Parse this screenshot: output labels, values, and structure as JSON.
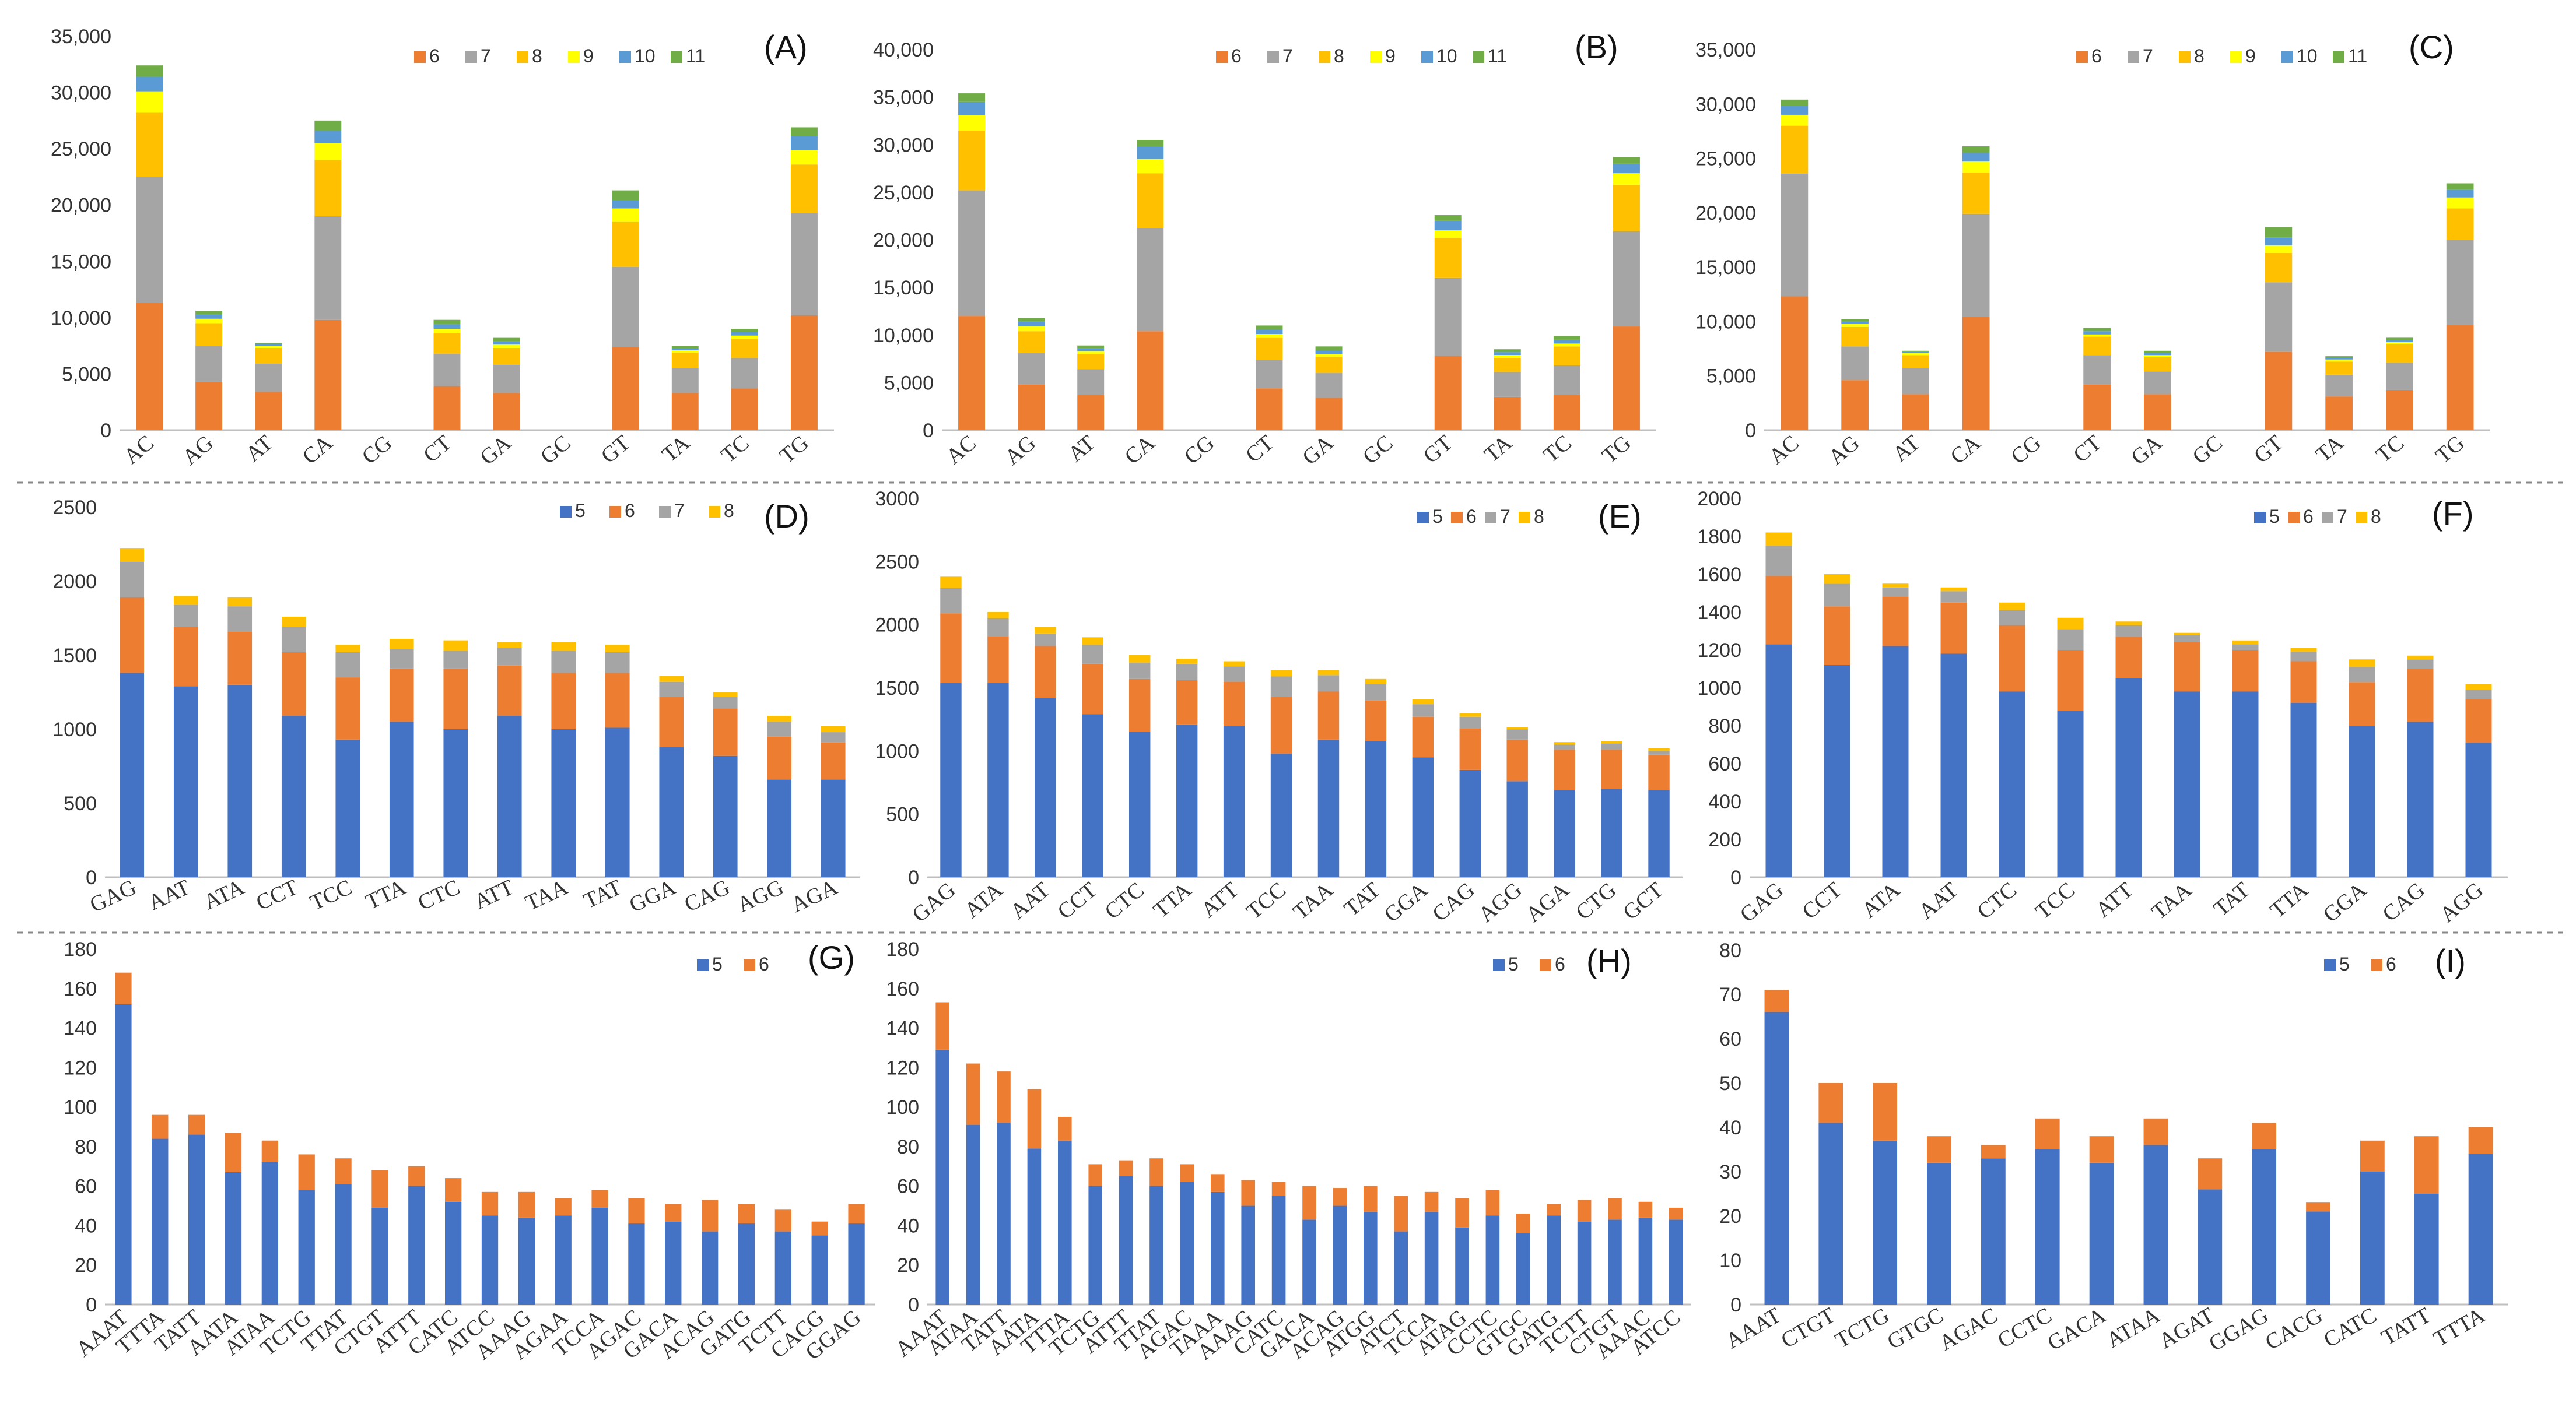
{
  "figure": {
    "colors": {
      "5": "#4472C4",
      "6": "#ED7D31",
      "7": "#A5A5A5",
      "8": "#FFC000",
      "9": "#FFFF00",
      "10": "#5B9BD5",
      "11": "#70AD47"
    }
  },
  "chart_data": [
    {
      "panel": "(A)",
      "type": "stacked-bar",
      "categories": [
        "AC",
        "AG",
        "AT",
        "CA",
        "CG",
        "CT",
        "GA",
        "GC",
        "GT",
        "TA",
        "TC",
        "TG"
      ],
      "ylim": [
        0,
        35000
      ],
      "yticks": [
        "0",
        "5,000",
        "10,000",
        "15,000",
        "20,000",
        "25,000",
        "30,000",
        "35,000"
      ],
      "legend": [
        "6",
        "7",
        "8",
        "9",
        "10",
        "11"
      ],
      "series": [
        {
          "name": "6",
          "values": [
            11300,
            4300,
            3400,
            9800,
            0,
            3900,
            3300,
            0,
            7400,
            3300,
            3700,
            10200
          ]
        },
        {
          "name": "7",
          "values": [
            11200,
            3200,
            2500,
            9200,
            0,
            2900,
            2500,
            0,
            7100,
            2200,
            2700,
            9100
          ]
        },
        {
          "name": "8",
          "values": [
            5700,
            2000,
            1400,
            5000,
            0,
            1800,
            1500,
            0,
            4000,
            1400,
            1700,
            4300
          ]
        },
        {
          "name": "9",
          "values": [
            1900,
            400,
            200,
            1500,
            0,
            400,
            300,
            0,
            1200,
            200,
            300,
            1300
          ]
        },
        {
          "name": "10",
          "values": [
            1300,
            400,
            150,
            1100,
            0,
            400,
            300,
            0,
            700,
            200,
            300,
            1200
          ]
        },
        {
          "name": "11",
          "values": [
            1000,
            300,
            100,
            900,
            0,
            400,
            300,
            0,
            900,
            200,
            300,
            800
          ]
        }
      ]
    },
    {
      "panel": "(B)",
      "type": "stacked-bar",
      "categories": [
        "AC",
        "AG",
        "AT",
        "CA",
        "CG",
        "CT",
        "GA",
        "GC",
        "GT",
        "TA",
        "TC",
        "TG"
      ],
      "ylim": [
        0,
        40000
      ],
      "yticks": [
        "0",
        "5,000",
        "10,000",
        "15,000",
        "20,000",
        "25,000",
        "30,000",
        "35,000",
        "40,000"
      ],
      "legend": [
        "6",
        "7",
        "8",
        "9",
        "10",
        "11"
      ],
      "series": [
        {
          "name": "6",
          "values": [
            12000,
            4800,
            3700,
            10400,
            0,
            4400,
            3400,
            0,
            7800,
            3500,
            3700,
            10900
          ]
        },
        {
          "name": "7",
          "values": [
            13200,
            3300,
            2700,
            10800,
            0,
            3000,
            2600,
            0,
            8200,
            2600,
            3100,
            10000
          ]
        },
        {
          "name": "8",
          "values": [
            6300,
            2300,
            1600,
            5800,
            0,
            2300,
            1700,
            0,
            4200,
            1500,
            2000,
            4900
          ]
        },
        {
          "name": "9",
          "values": [
            1600,
            500,
            300,
            1500,
            0,
            400,
            300,
            0,
            800,
            300,
            300,
            1200
          ]
        },
        {
          "name": "10",
          "values": [
            1400,
            500,
            300,
            1300,
            0,
            500,
            400,
            0,
            1000,
            300,
            400,
            1000
          ]
        },
        {
          "name": "11",
          "values": [
            900,
            400,
            300,
            700,
            0,
            400,
            400,
            0,
            600,
            300,
            400,
            700
          ]
        }
      ]
    },
    {
      "panel": "(C)",
      "type": "stacked-bar",
      "categories": [
        "AC",
        "AG",
        "AT",
        "CA",
        "CG",
        "CT",
        "GA",
        "GC",
        "GT",
        "TA",
        "TC",
        "TG"
      ],
      "ylim": [
        0,
        35000
      ],
      "yticks": [
        "0",
        "5,000",
        "10,000",
        "15,000",
        "20,000",
        "25,000",
        "30,000",
        "35,000"
      ],
      "legend": [
        "6",
        "7",
        "8",
        "9",
        "10",
        "11"
      ],
      "series": [
        {
          "name": "6",
          "values": [
            12300,
            4600,
            3300,
            10400,
            0,
            4200,
            3300,
            0,
            7200,
            3100,
            3700,
            9700
          ]
        },
        {
          "name": "7",
          "values": [
            11300,
            3100,
            2400,
            9500,
            0,
            2700,
            2100,
            0,
            6400,
            2000,
            2500,
            7800
          ]
        },
        {
          "name": "8",
          "values": [
            4400,
            1800,
            1200,
            3800,
            0,
            1700,
            1300,
            0,
            2700,
            1200,
            1700,
            2900
          ]
        },
        {
          "name": "9",
          "values": [
            1000,
            300,
            200,
            1000,
            0,
            200,
            200,
            0,
            700,
            200,
            200,
            1000
          ]
        },
        {
          "name": "10",
          "values": [
            800,
            200,
            100,
            800,
            0,
            300,
            200,
            0,
            700,
            200,
            200,
            700
          ]
        },
        {
          "name": "11",
          "values": [
            600,
            200,
            100,
            600,
            0,
            300,
            200,
            0,
            1000,
            100,
            200,
            600
          ]
        }
      ]
    },
    {
      "panel": "(D)",
      "type": "stacked-bar",
      "categories": [
        "GAG",
        "AAT",
        "ATA",
        "CCT",
        "TCC",
        "TTA",
        "CTC",
        "ATT",
        "TAA",
        "TAT",
        "GGA",
        "CAG",
        "AGG",
        "AGA"
      ],
      "ylim": [
        0,
        2500
      ],
      "yticks": [
        "0",
        "500",
        "1000",
        "1500",
        "2000",
        "2500"
      ],
      "legend": [
        "5",
        "6",
        "7",
        "8"
      ],
      "series": [
        {
          "name": "5",
          "values": [
            1380,
            1290,
            1300,
            1090,
            930,
            1050,
            1000,
            1090,
            1000,
            1010,
            880,
            820,
            660,
            660
          ]
        },
        {
          "name": "6",
          "values": [
            510,
            400,
            360,
            430,
            420,
            360,
            410,
            340,
            380,
            370,
            340,
            320,
            290,
            250
          ]
        },
        {
          "name": "7",
          "values": [
            240,
            150,
            170,
            170,
            170,
            130,
            120,
            120,
            150,
            140,
            100,
            80,
            100,
            70
          ]
        },
        {
          "name": "8",
          "values": [
            90,
            60,
            60,
            70,
            50,
            70,
            70,
            40,
            60,
            50,
            40,
            30,
            40,
            40
          ]
        }
      ]
    },
    {
      "panel": "(E)",
      "type": "stacked-bar",
      "categories": [
        "GAG",
        "ATA",
        "AAT",
        "CCT",
        "CTC",
        "TTA",
        "ATT",
        "TCC",
        "TAA",
        "TAT",
        "GGA",
        "CAG",
        "AGG",
        "AGA",
        "CTG",
        "GCT"
      ],
      "ylim": [
        0,
        3000
      ],
      "yticks": [
        "0",
        "500",
        "1000",
        "1500",
        "2000",
        "2500",
        "3000"
      ],
      "legend": [
        "5",
        "6",
        "7",
        "8"
      ],
      "series": [
        {
          "name": "5",
          "values": [
            1540,
            1540,
            1420,
            1290,
            1150,
            1210,
            1200,
            980,
            1090,
            1080,
            950,
            850,
            760,
            690,
            700,
            690
          ]
        },
        {
          "name": "6",
          "values": [
            550,
            370,
            410,
            400,
            420,
            350,
            350,
            450,
            380,
            320,
            320,
            330,
            330,
            320,
            310,
            280
          ]
        },
        {
          "name": "7",
          "values": [
            200,
            140,
            100,
            150,
            130,
            130,
            120,
            160,
            130,
            130,
            100,
            90,
            80,
            40,
            50,
            30
          ]
        },
        {
          "name": "8",
          "values": [
            90,
            50,
            50,
            60,
            60,
            40,
            40,
            50,
            40,
            40,
            40,
            30,
            20,
            20,
            20,
            20
          ]
        }
      ]
    },
    {
      "panel": "(F)",
      "type": "stacked-bar",
      "categories": [
        "GAG",
        "CCT",
        "ATA",
        "AAT",
        "CTC",
        "TCC",
        "ATT",
        "TAA",
        "TAT",
        "TTA",
        "GGA",
        "CAG",
        "AGG"
      ],
      "ylim": [
        0,
        2000
      ],
      "yticks": [
        "0",
        "200",
        "400",
        "600",
        "800",
        "1000",
        "1200",
        "1400",
        "1600",
        "1800",
        "2000"
      ],
      "legend": [
        "5",
        "6",
        "7",
        "8"
      ],
      "series": [
        {
          "name": "5",
          "values": [
            1230,
            1120,
            1220,
            1180,
            980,
            880,
            1050,
            980,
            980,
            920,
            800,
            820,
            710
          ]
        },
        {
          "name": "6",
          "values": [
            360,
            310,
            260,
            270,
            350,
            320,
            220,
            260,
            220,
            220,
            230,
            280,
            230
          ]
        },
        {
          "name": "7",
          "values": [
            160,
            120,
            50,
            60,
            80,
            110,
            60,
            40,
            30,
            50,
            80,
            50,
            50
          ]
        },
        {
          "name": "8",
          "values": [
            70,
            50,
            20,
            20,
            40,
            60,
            20,
            10,
            20,
            20,
            40,
            20,
            30
          ]
        }
      ]
    },
    {
      "panel": "(G)",
      "type": "stacked-bar",
      "categories": [
        "AAAT",
        "TTTA",
        "TATT",
        "AATA",
        "ATAA",
        "TCTG",
        "TTAT",
        "CTGT",
        "ATTT",
        "CATC",
        "ATCC",
        "AAAG",
        "AGAA",
        "TCCA",
        "AGAC",
        "GACA",
        "ACAG",
        "GATG",
        "TCTT",
        "CACG",
        "GGAG"
      ],
      "ylim": [
        0,
        180
      ],
      "yticks": [
        "0",
        "20",
        "40",
        "60",
        "80",
        "100",
        "120",
        "140",
        "160",
        "180"
      ],
      "legend": [
        "5",
        "6"
      ],
      "series": [
        {
          "name": "5",
          "values": [
            152,
            84,
            86,
            67,
            72,
            58,
            61,
            49,
            60,
            52,
            45,
            44,
            45,
            49,
            41,
            42,
            37,
            41,
            37,
            35,
            41
          ]
        },
        {
          "name": "6",
          "values": [
            16,
            12,
            10,
            20,
            11,
            18,
            13,
            19,
            10,
            12,
            12,
            13,
            9,
            9,
            13,
            9,
            16,
            10,
            11,
            7,
            10
          ]
        }
      ]
    },
    {
      "panel": "(H)",
      "type": "stacked-bar",
      "categories": [
        "AAAT",
        "ATAA",
        "TATT",
        "AATA",
        "TTTA",
        "TCTG",
        "ATTT",
        "TTAT",
        "AGAC",
        "TAAA",
        "AAAG",
        "CATC",
        "GACA",
        "ACAG",
        "ATGG",
        "ATCT",
        "TCCA",
        "ATAG",
        "CCTC",
        "GTGC",
        "GATG",
        "TCTT",
        "CTGT",
        "AAAC",
        "ATCC"
      ],
      "ylim": [
        0,
        180
      ],
      "yticks": [
        "0",
        "20",
        "40",
        "60",
        "80",
        "100",
        "120",
        "140",
        "160",
        "180"
      ],
      "legend": [
        "5",
        "6"
      ],
      "series": [
        {
          "name": "5",
          "values": [
            129,
            91,
            92,
            79,
            83,
            60,
            65,
            60,
            62,
            57,
            50,
            55,
            43,
            50,
            47,
            37,
            47,
            39,
            45,
            36,
            45,
            42,
            43,
            44,
            43
          ]
        },
        {
          "name": "6",
          "values": [
            24,
            31,
            26,
            30,
            12,
            11,
            8,
            14,
            9,
            9,
            13,
            7,
            17,
            9,
            13,
            18,
            10,
            15,
            13,
            10,
            6,
            11,
            11,
            8,
            6
          ]
        }
      ]
    },
    {
      "panel": "(I)",
      "type": "stacked-bar",
      "categories": [
        "AAAT",
        "CTGT",
        "TCTG",
        "GTGC",
        "AGAC",
        "CCTC",
        "GACA",
        "ATAA",
        "AGAT",
        "GGAG",
        "CACG",
        "CATC",
        "TATT",
        "TTTA"
      ],
      "ylim": [
        0,
        80
      ],
      "yticks": [
        "0",
        "10",
        "20",
        "30",
        "40",
        "50",
        "60",
        "70",
        "80"
      ],
      "legend": [
        "5",
        "6"
      ],
      "series": [
        {
          "name": "5",
          "values": [
            66,
            41,
            37,
            32,
            33,
            35,
            32,
            36,
            26,
            35,
            21,
            30,
            25,
            34
          ]
        },
        {
          "name": "6",
          "values": [
            5,
            9,
            13,
            6,
            3,
            7,
            6,
            6,
            7,
            6,
            2,
            7,
            13,
            6
          ]
        }
      ]
    }
  ]
}
